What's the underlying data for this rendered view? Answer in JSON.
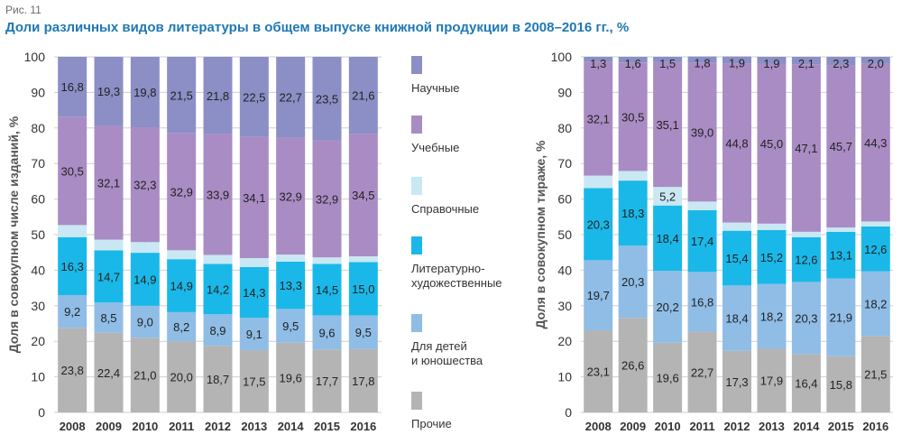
{
  "figure_label": "Рис. 11",
  "title": "Доли различных видов литературы в общем выпуске книжной продукции в 2008–2016 гг., %",
  "legend": [
    {
      "name": "Научные",
      "color": "#8b8fc5"
    },
    {
      "name": "Учебные",
      "color": "#a98cc4"
    },
    {
      "name": "Справочные",
      "color": "#c9e8f3"
    },
    {
      "name": "Литературно-\nхудожественные",
      "color": "#1ab8e8"
    },
    {
      "name": "Для детей\nи юношества",
      "color": "#8fbde6"
    },
    {
      "name": "Прочие",
      "color": "#b4b4b4"
    }
  ],
  "chart_data": [
    {
      "type": "bar",
      "stacked": true,
      "ylabel": "Доля в совокупном числе изданий, %",
      "ylim": [
        0,
        100
      ],
      "yticks": [
        0,
        10,
        20,
        30,
        40,
        50,
        60,
        70,
        80,
        90,
        100
      ],
      "categories": [
        "2008",
        "2009",
        "2010",
        "2011",
        "2012",
        "2013",
        "2014",
        "2015",
        "2016"
      ],
      "series": [
        {
          "name": "Прочие",
          "values": [
            23.8,
            22.4,
            21.0,
            20.0,
            18.7,
            17.5,
            19.6,
            17.7,
            17.8
          ],
          "labels": [
            "23,8",
            "22,4",
            "21,0",
            "20,0",
            "18,7",
            "17,5",
            "19,6",
            "17,7",
            "17,8"
          ]
        },
        {
          "name": "Для детей и юношества",
          "values": [
            9.2,
            8.5,
            9.0,
            8.2,
            8.9,
            9.1,
            9.5,
            9.6,
            9.5
          ],
          "labels": [
            "9,2",
            "8,5",
            "9,0",
            "8,2",
            "8,9",
            "9,1",
            "9,5",
            "9,6",
            "9,5"
          ]
        },
        {
          "name": "Литературно-художественные",
          "values": [
            16.3,
            14.7,
            14.9,
            14.9,
            14.2,
            14.3,
            13.3,
            14.5,
            15.0
          ],
          "labels": [
            "16,3",
            "14,7",
            "14,9",
            "14,9",
            "14,2",
            "14,3",
            "13,3",
            "14,5",
            "15,0"
          ]
        },
        {
          "name": "Справочные",
          "values": [
            3.4,
            3.0,
            3.0,
            2.5,
            2.5,
            2.5,
            2.0,
            1.8,
            1.6
          ],
          "labels": [
            "3,4",
            "3,0",
            "3,0",
            "2,5",
            "2,5",
            "2,5",
            "2,0",
            "1,8",
            "1,6"
          ]
        },
        {
          "name": "Учебные",
          "values": [
            30.5,
            32.1,
            32.3,
            32.9,
            33.9,
            34.1,
            32.9,
            32.9,
            34.5
          ],
          "labels": [
            "30,5",
            "32,1",
            "32,3",
            "32,9",
            "33,9",
            "34,1",
            "32,9",
            "32,9",
            "34,5"
          ]
        },
        {
          "name": "Научные",
          "values": [
            16.8,
            19.3,
            19.8,
            21.5,
            21.8,
            22.5,
            22.7,
            23.5,
            21.6
          ],
          "labels": [
            "16,8",
            "19,3",
            "19,8",
            "21,5",
            "21,8",
            "22,5",
            "22,7",
            "23,5",
            "21,6"
          ]
        }
      ]
    },
    {
      "type": "bar",
      "stacked": true,
      "ylabel": "Доля в совокупном тираже, %",
      "ylim": [
        0,
        100
      ],
      "yticks": [
        0,
        10,
        20,
        30,
        40,
        50,
        60,
        70,
        80,
        90,
        100
      ],
      "categories": [
        "2008",
        "2009",
        "2010",
        "2011",
        "2012",
        "2013",
        "2014",
        "2015",
        "2016"
      ],
      "series": [
        {
          "name": "Прочие",
          "values": [
            23.1,
            26.6,
            19.6,
            22.7,
            17.3,
            17.9,
            16.4,
            15.8,
            21.5
          ],
          "labels": [
            "23,1",
            "26,6",
            "19,6",
            "22,7",
            "17,3",
            "17,9",
            "16,4",
            "15,8",
            "21,5"
          ]
        },
        {
          "name": "Для детей и юношества",
          "values": [
            19.7,
            20.3,
            20.2,
            16.8,
            18.4,
            18.2,
            20.3,
            21.9,
            18.2
          ],
          "labels": [
            "19,7",
            "20,3",
            "20,2",
            "16,8",
            "18,4",
            "18,2",
            "20,3",
            "21,9",
            "18,2"
          ]
        },
        {
          "name": "Литературно-художественные",
          "values": [
            20.3,
            18.3,
            18.4,
            17.4,
            15.4,
            15.2,
            12.6,
            13.1,
            12.6
          ],
          "labels": [
            "20,3",
            "18,3",
            "18,4",
            "17,4",
            "15,4",
            "15,2",
            "12,6",
            "13,1",
            "12,6"
          ]
        },
        {
          "name": "Справочные",
          "values": [
            3.5,
            2.7,
            5.2,
            2.4,
            2.3,
            1.8,
            1.5,
            1.2,
            1.4
          ],
          "labels": [
            "3,5",
            "2,7",
            "5,2",
            "2,4",
            "2,3",
            "1,8",
            "1,5",
            "1,2",
            "1,4"
          ]
        },
        {
          "name": "Учебные",
          "values": [
            32.1,
            30.5,
            35.1,
            39.0,
            44.8,
            45.0,
            47.1,
            45.7,
            44.3
          ],
          "labels": [
            "32,1",
            "30,5",
            "35,1",
            "39,0",
            "44,8",
            "45,0",
            "47,1",
            "45,7",
            "44,3"
          ]
        },
        {
          "name": "Научные",
          "values": [
            1.3,
            1.6,
            1.5,
            1.8,
            1.9,
            1.9,
            2.1,
            2.3,
            2.0
          ],
          "labels": [
            "1,3",
            "1,6",
            "1,5",
            "1,8",
            "1,9",
            "1,9",
            "2,1",
            "2,3",
            "2,0"
          ]
        }
      ]
    }
  ]
}
